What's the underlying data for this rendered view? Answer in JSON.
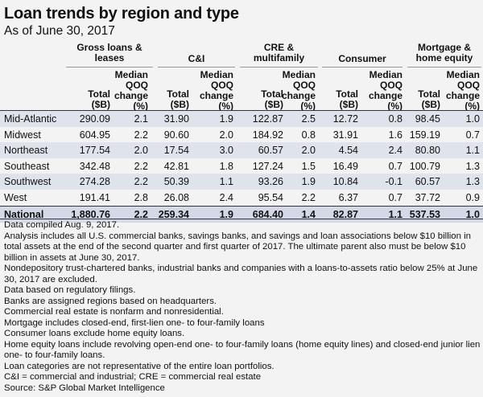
{
  "title": "Loan trends by region and type",
  "subtitle": "As of June 30, 2017",
  "groups": [
    {
      "line1": "Gross loans &",
      "line2": "leases"
    },
    {
      "line1": "C&I",
      "line2": ""
    },
    {
      "line1": "CRE &",
      "line2": "multifamily"
    },
    {
      "line1": "Consumer",
      "line2": ""
    },
    {
      "line1": "Mortgage &",
      "line2": "home equity"
    }
  ],
  "col_headers": {
    "total": [
      "Total",
      "($B)"
    ],
    "median": [
      "Median",
      "QOQ",
      "change",
      "(%)"
    ]
  },
  "rows": [
    {
      "name": "Mid-Atlantic",
      "values": [
        "290.09",
        "2.1",
        "31.90",
        "1.9",
        "122.87",
        "2.5",
        "12.72",
        "0.8",
        "98.45",
        "1.0"
      ]
    },
    {
      "name": "Midwest",
      "values": [
        "604.95",
        "2.2",
        "90.60",
        "2.0",
        "184.92",
        "0.8",
        "31.91",
        "1.6",
        "159.19",
        "0.7"
      ]
    },
    {
      "name": "Northeast",
      "values": [
        "177.54",
        "2.0",
        "17.54",
        "3.0",
        "60.57",
        "2.0",
        "4.54",
        "2.4",
        "80.80",
        "1.1"
      ]
    },
    {
      "name": "Southeast",
      "values": [
        "342.48",
        "2.2",
        "42.81",
        "1.8",
        "127.24",
        "1.5",
        "16.49",
        "0.7",
        "100.79",
        "1.3"
      ]
    },
    {
      "name": "Southwest",
      "values": [
        "274.28",
        "2.2",
        "50.39",
        "1.1",
        "93.26",
        "1.9",
        "10.84",
        "-0.1",
        "60.57",
        "1.3"
      ]
    },
    {
      "name": "West",
      "values": [
        "191.41",
        "2.8",
        "26.08",
        "2.4",
        "95.54",
        "2.2",
        "6.37",
        "0.7",
        "37.72",
        "0.9"
      ]
    }
  ],
  "national": {
    "name": "National",
    "values": [
      "1,880.76",
      "2.2",
      "259.34",
      "1.9",
      "684.40",
      "1.4",
      "82.87",
      "1.1",
      "537.53",
      "1.0"
    ]
  },
  "notes": [
    "Data compiled Aug. 9, 2017.",
    "Analysis includes all U.S. commercial banks, savings banks, and savings and loan associations below $10 billion in total assets at the end of the second quarter and first quarter of 2017. The ultimate parent also must be below $10 billion in assets at June 30, 2017.",
    "Nondepository trust-chartered banks, industrial banks and companies with a loans-to-assets ratio below 25% at June 30, 2017 are excluded.",
    "Data based on regulatory filings.",
    "Banks are assigned regions based on headquarters.",
    "Commercial real estate is nonfarm and nonresidential.",
    "Mortgage includes closed-end, first-lien one- to four-family loans",
    "Consumer loans exclude home equity loans.",
    "Home equity loans include revolving open-end one- to four-family loans (home equity lines) and closed-end junior lien one- to four-family loans.",
    "Loan categories are not representative of the entire loan portfolios.",
    "C&I = commercial and industrial; CRE = commercial real estate",
    "Source: S&P Global Market Intelligence"
  ],
  "colors": {
    "row_shade": "#dfe3ec",
    "national_shade": "#d3d9e6",
    "background": "#f3f3f3"
  }
}
